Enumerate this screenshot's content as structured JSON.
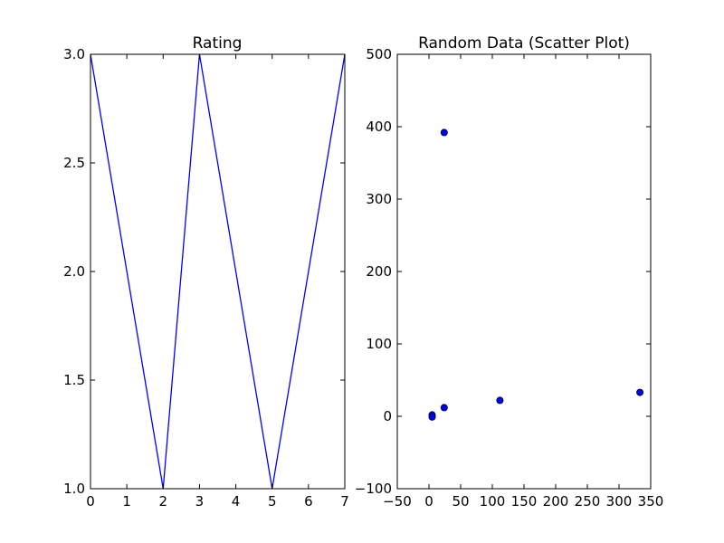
{
  "chart_data": [
    {
      "type": "line",
      "title": "Rating",
      "xlabel": "",
      "ylabel": "",
      "xlim": [
        0,
        7
      ],
      "ylim": [
        1.0,
        3.0
      ],
      "grid": false,
      "x_ticks": [
        0,
        1,
        2,
        3,
        4,
        5,
        6,
        7
      ],
      "x_tick_labels": [
        "0",
        "1",
        "2",
        "3",
        "4",
        "5",
        "6",
        "7"
      ],
      "y_ticks": [
        1.0,
        1.5,
        2.0,
        2.5,
        3.0
      ],
      "y_tick_labels": [
        "1.0",
        "1.5",
        "2.0",
        "2.5",
        "3.0"
      ],
      "series": [
        {
          "x": [
            0,
            2,
            3,
            5,
            7
          ],
          "y": [
            3.0,
            1.0,
            3.0,
            1.0,
            3.0
          ],
          "color": "#0000ff"
        }
      ]
    },
    {
      "type": "scatter",
      "title": "Random Data (Scatter Plot)",
      "xlabel": "",
      "ylabel": "",
      "xlim": [
        -50,
        350
      ],
      "ylim": [
        -100,
        500
      ],
      "grid": false,
      "x_ticks": [
        -50,
        0,
        50,
        100,
        150,
        200,
        250,
        300,
        350
      ],
      "x_tick_labels": [
        "−50",
        "0",
        "50",
        "100",
        "150",
        "200",
        "250",
        "300",
        "350"
      ],
      "y_ticks": [
        -100,
        0,
        100,
        200,
        300,
        400,
        500
      ],
      "y_tick_labels": [
        "−100",
        "0",
        "100",
        "200",
        "300",
        "400",
        "500"
      ],
      "series": [
        {
          "x": [
            5,
            5,
            24,
            24,
            112,
            333
          ],
          "y": [
            2,
            -1,
            392,
            12,
            22,
            33
          ],
          "color": "#0000ff"
        }
      ]
    }
  ]
}
